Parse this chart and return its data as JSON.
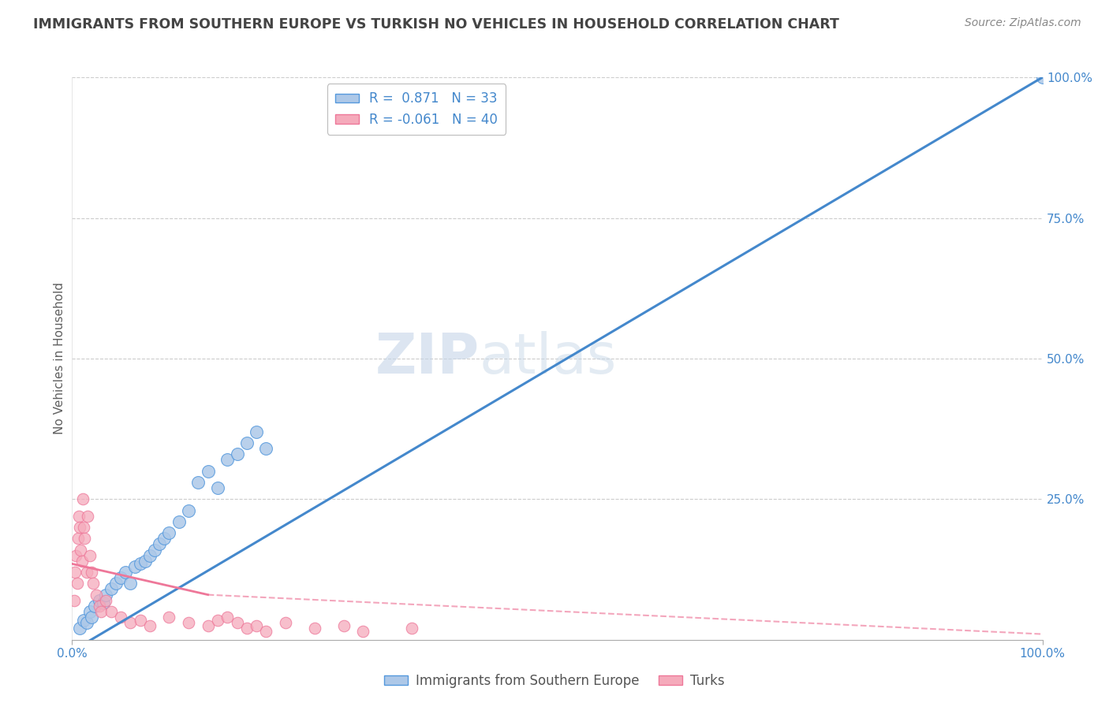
{
  "title": "IMMIGRANTS FROM SOUTHERN EUROPE VS TURKISH NO VEHICLES IN HOUSEHOLD CORRELATION CHART",
  "source": "Source: ZipAtlas.com",
  "ylabel": "No Vehicles in Household",
  "watermark_zip": "ZIP",
  "watermark_atlas": "atlas",
  "xlim": [
    0,
    100
  ],
  "ylim": [
    0,
    100
  ],
  "blue_label": "Immigrants from Southern Europe",
  "pink_label": "Turks",
  "blue_R": "0.871",
  "blue_N": "33",
  "pink_R": "-0.061",
  "pink_N": "40",
  "blue_color": "#adc8e8",
  "pink_color": "#f5aabb",
  "blue_edge_color": "#5599dd",
  "pink_edge_color": "#ee7799",
  "blue_line_color": "#4488cc",
  "pink_line_color": "#ee7799",
  "grid_color": "#cccccc",
  "title_color": "#444444",
  "legend_text_color": "#4488cc",
  "blue_scatter_x": [
    0.8,
    1.2,
    1.5,
    1.8,
    2.0,
    2.3,
    2.8,
    3.2,
    3.5,
    4.0,
    4.5,
    5.0,
    5.5,
    6.0,
    6.5,
    7.0,
    7.5,
    8.0,
    8.5,
    9.0,
    9.5,
    10.0,
    11.0,
    12.0,
    13.0,
    14.0,
    15.0,
    16.0,
    17.0,
    18.0,
    19.0,
    20.0,
    100.0
  ],
  "blue_scatter_y": [
    2.0,
    3.5,
    3.0,
    5.0,
    4.0,
    6.0,
    7.0,
    6.5,
    8.0,
    9.0,
    10.0,
    11.0,
    12.0,
    10.0,
    13.0,
    13.5,
    14.0,
    15.0,
    16.0,
    17.0,
    18.0,
    19.0,
    21.0,
    23.0,
    28.0,
    30.0,
    27.0,
    32.0,
    33.0,
    35.0,
    37.0,
    34.0,
    100.0
  ],
  "pink_scatter_x": [
    0.2,
    0.3,
    0.4,
    0.5,
    0.6,
    0.7,
    0.8,
    0.9,
    1.0,
    1.1,
    1.2,
    1.3,
    1.5,
    1.6,
    1.8,
    2.0,
    2.2,
    2.5,
    2.8,
    3.0,
    3.5,
    4.0,
    5.0,
    6.0,
    7.0,
    8.0,
    10.0,
    12.0,
    14.0,
    15.0,
    16.0,
    17.0,
    18.0,
    19.0,
    20.0,
    22.0,
    25.0,
    28.0,
    30.0,
    35.0
  ],
  "pink_scatter_y": [
    7.0,
    12.0,
    15.0,
    10.0,
    18.0,
    22.0,
    20.0,
    16.0,
    14.0,
    25.0,
    20.0,
    18.0,
    12.0,
    22.0,
    15.0,
    12.0,
    10.0,
    8.0,
    6.0,
    5.0,
    7.0,
    5.0,
    4.0,
    3.0,
    3.5,
    2.5,
    4.0,
    3.0,
    2.5,
    3.5,
    4.0,
    3.0,
    2.0,
    2.5,
    1.5,
    3.0,
    2.0,
    2.5,
    1.5,
    2.0
  ],
  "background_color": "#ffffff",
  "blue_line_x0": 0,
  "blue_line_y0": -2.0,
  "blue_line_x1": 100,
  "blue_line_y1": 100,
  "pink_solid_x0": 0,
  "pink_solid_y0": 13.5,
  "pink_solid_x1": 14,
  "pink_solid_y1": 8.0,
  "pink_dash_x0": 14,
  "pink_dash_y0": 8.0,
  "pink_dash_x1": 100,
  "pink_dash_y1": 1.0
}
